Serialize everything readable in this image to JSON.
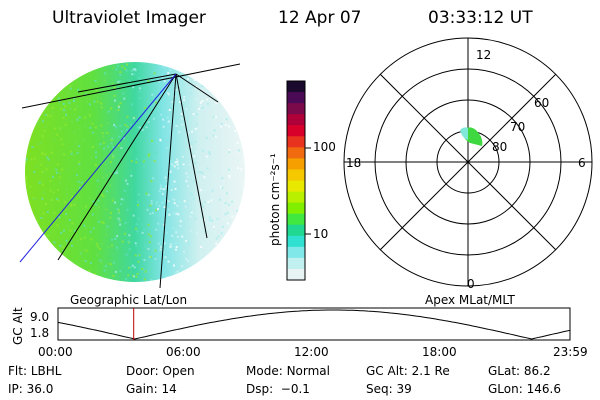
{
  "header": {
    "title": "Ultraviolet Imager",
    "date": "12 Apr 07",
    "time": "03:33:12 UT"
  },
  "left_panel": {
    "caption": "Geographic Lat/Lon"
  },
  "colorbar": {
    "unit_label": "photon cm⁻²s⁻¹",
    "tick_labels": [
      "100",
      "10"
    ],
    "colors": [
      "#1a0a2e",
      "#4a0a55",
      "#7a0a4a",
      "#b0003a",
      "#d8002a",
      "#e8341e",
      "#f06a10",
      "#f5a000",
      "#f5c800",
      "#e8e800",
      "#b8f000",
      "#80f000",
      "#40e840",
      "#20d890",
      "#30e0d0",
      "#80e8e8",
      "#c0f0f0",
      "#e8f4f4"
    ]
  },
  "polar_plot": {
    "caption": "Apex MLat/MLT",
    "clock_labels": {
      "top": "12",
      "bottom": "0",
      "left": "18",
      "right": "6"
    },
    "latitude_labels": [
      "60",
      "70",
      "80"
    ]
  },
  "altitude_plot": {
    "axis_label": "GC Alt",
    "y_labels": [
      "9.0",
      "1.8"
    ],
    "x_labels": [
      "00:00",
      "06:00",
      "12:00",
      "18:00",
      "23:59"
    ],
    "current_marker_hour": 3.55
  },
  "status": {
    "row1": [
      {
        "key": "Flt:",
        "value": "LBHL"
      },
      {
        "key": "Door:",
        "value": "Open"
      },
      {
        "key": "Mode:",
        "value": "Normal"
      },
      {
        "key": "GC Alt:",
        "value": "2.1 Re"
      },
      {
        "key": "GLat:",
        "value": "86.2"
      }
    ],
    "row2": [
      {
        "key": "IP:",
        "value": "36.0"
      },
      {
        "key": "Gain:",
        "value": "14"
      },
      {
        "key": "Dsp:",
        "value": "−0.1"
      },
      {
        "key": "Seq:",
        "value": "39"
      },
      {
        "key": "GLon:",
        "value": "146.6"
      }
    ]
  }
}
